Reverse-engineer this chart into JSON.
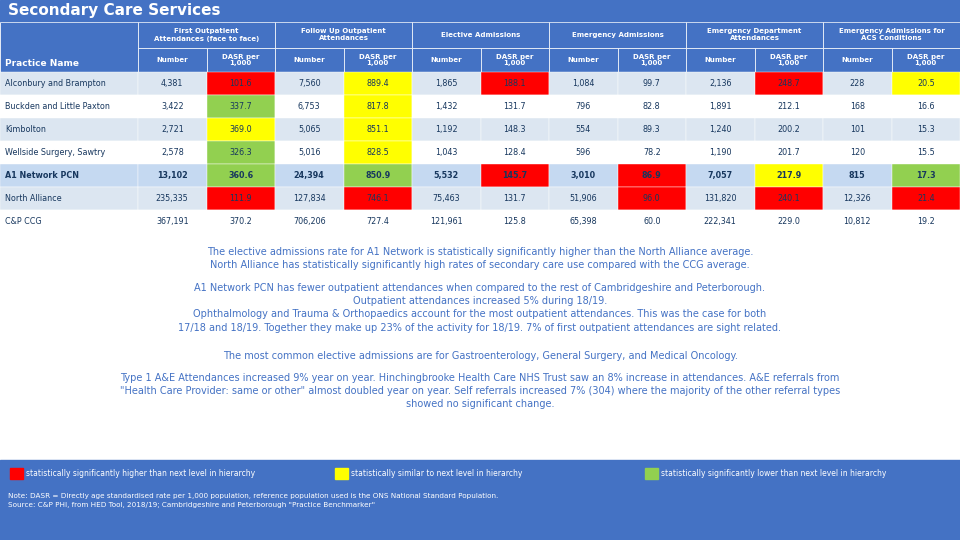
{
  "title": "Secondary Care Services",
  "col_groups": [
    {
      "label": "First Outpatient\nAttendances (face to face)",
      "span": 2
    },
    {
      "label": "Follow Up Outpatient\nAttendances",
      "span": 2
    },
    {
      "label": "Elective Admissions",
      "span": 2
    },
    {
      "label": "Emergency Admissions",
      "span": 2
    },
    {
      "label": "Emergency Department\nAttendances",
      "span": 2
    },
    {
      "label": "Emergency Admissions for\nACS Conditions",
      "span": 2
    }
  ],
  "sub_headers": [
    "Number",
    "DASR per\n1,000",
    "Number",
    "DASR per\n1,000",
    "Number",
    "DASR per\n1,000",
    "Number",
    "DASR per\n1,000",
    "Number",
    "DASR per\n1,000",
    "Number",
    "DASR per\n1,000"
  ],
  "practice_col_header": "Practice Name",
  "rows": [
    {
      "name": "Alconbury and Brampton",
      "bold": false,
      "values": [
        "4,381",
        "101.6",
        "7,560",
        "889.4",
        "1,865",
        "188.1",
        "1,084",
        "99.7",
        "2,136",
        "248.7",
        "228",
        "20.5"
      ],
      "colors": [
        "",
        "red",
        "",
        "yellow",
        "",
        "red",
        "",
        "",
        "",
        "red",
        "",
        "yellow"
      ]
    },
    {
      "name": "Buckden and Little Paxton",
      "bold": false,
      "values": [
        "3,422",
        "337.7",
        "6,753",
        "817.8",
        "1,432",
        "131.7",
        "796",
        "82.8",
        "1,891",
        "212.1",
        "168",
        "16.6"
      ],
      "colors": [
        "",
        "green",
        "",
        "yellow",
        "",
        "",
        "",
        "",
        "",
        "",
        "",
        ""
      ]
    },
    {
      "name": "Kimbolton",
      "bold": false,
      "values": [
        "2,721",
        "369.0",
        "5,065",
        "851.1",
        "1,192",
        "148.3",
        "554",
        "89.3",
        "1,240",
        "200.2",
        "101",
        "15.3"
      ],
      "colors": [
        "",
        "yellow",
        "",
        "yellow",
        "",
        "",
        "",
        "",
        "",
        "",
        "",
        ""
      ]
    },
    {
      "name": "Wellside Surgery, Sawtry",
      "bold": false,
      "values": [
        "2,578",
        "326.3",
        "5,016",
        "828.5",
        "1,043",
        "128.4",
        "596",
        "78.2",
        "1,190",
        "201.7",
        "120",
        "15.5"
      ],
      "colors": [
        "",
        "green",
        "",
        "yellow",
        "",
        "",
        "",
        "",
        "",
        "",
        "",
        ""
      ]
    },
    {
      "name": "A1 Network PCN",
      "bold": true,
      "values": [
        "13,102",
        "360.6",
        "24,394",
        "850.9",
        "5,532",
        "145.7",
        "3,010",
        "86.9",
        "7,057",
        "217.9",
        "815",
        "17.3"
      ],
      "colors": [
        "",
        "green",
        "",
        "green",
        "",
        "red",
        "",
        "red",
        "",
        "yellow",
        "",
        "green"
      ]
    },
    {
      "name": "North Alliance",
      "bold": false,
      "values": [
        "235,335",
        "111.9",
        "127,834",
        "746.1",
        "75,463",
        "131.7",
        "51,906",
        "96.0",
        "131,820",
        "240.1",
        "12,326",
        "21.4"
      ],
      "colors": [
        "",
        "red",
        "",
        "red",
        "",
        "",
        "",
        "red",
        "",
        "red",
        "",
        "red"
      ]
    },
    {
      "name": "C&P CCG",
      "bold": false,
      "values": [
        "367,191",
        "370.2",
        "706,206",
        "727.4",
        "121,961",
        "125.8",
        "65,398",
        "60.0",
        "222,341",
        "229.0",
        "10,812",
        "19.2"
      ],
      "colors": [
        "",
        "",
        "",
        "",
        "",
        "",
        "",
        "",
        "",
        "",
        "",
        ""
      ]
    }
  ],
  "body_text1": "The elective admissions rate for A1 Network is statistically significantly higher than the North Alliance average.\nNorth Alliance has statistically significantly high rates of secondary care use compared with the CCG average.",
  "body_text2": "A1 Network PCN has fewer outpatient attendances when compared to the rest of Cambridgeshire and Peterborough.\nOutpatient attendances increased 5% during 18/19.\nOphthalmology and Trauma & Orthopaedics account for the most outpatient attendances. This was the case for both\n17/18 and 18/19. Together they make up 23% of the activity for 18/19. 7% of first outpatient attendances are sight related.",
  "body_text3": "The most common elective admissions are for Gastroenterology, General Surgery, and Medical Oncology.",
  "body_text4": "Type 1 A&E Attendances increased 9% year on year. Hinchingbrooke Health Care NHS Trust saw an 8% increase in attendances. A&E referrals from\n\"Health Care Provider: same or other\" almost doubled year on year. Self referrals increased 7% (304) where the majority of the other referral types\nshowed no significant change.",
  "legend": [
    {
      "color": "#ff0000",
      "label": "statistically significantly higher than next level in hierarchy"
    },
    {
      "color": "#ffff00",
      "label": "statistically similar to next level in hierarchy"
    },
    {
      "color": "#92d050",
      "label": "statistically significantly lower than next level in hierarchy"
    }
  ],
  "note_text": "Note: DASR = Directly age standardised rate per 1,000 population, reference population used is the ONS National Standard Population.\nSource: C&P PHI, from HED Tool, 2018/19; Cambridgeshire and Peterborough \"Practice Benchmarker\"",
  "cell_red": "#ff0000",
  "cell_yellow": "#ffff00",
  "cell_green": "#92d050",
  "header_blue": "#4472c4",
  "row_bg_alt": "#dce6f1",
  "row_bg_white": "#c8d8ee",
  "highlight_bg": "#b8cce4",
  "text_dark": "#17375e",
  "text_white": "#ffffff"
}
